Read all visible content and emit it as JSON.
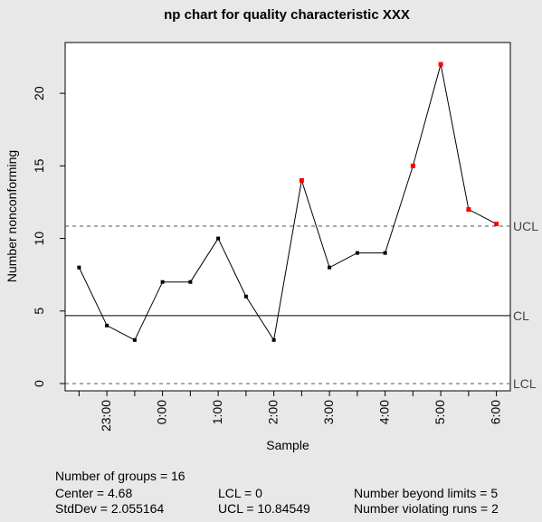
{
  "chart_data": {
    "type": "line",
    "title": "np chart for quality characteristic XXX",
    "xlabel": "Sample",
    "ylabel": "Number nonconforming",
    "x_tick_labels": [
      {
        "index": 2,
        "label": "23:00"
      },
      {
        "index": 4,
        "label": "0:00"
      },
      {
        "index": 6,
        "label": "1:00"
      },
      {
        "index": 8,
        "label": "2:00"
      },
      {
        "index": 10,
        "label": "3:00"
      },
      {
        "index": 12,
        "label": "4:00"
      },
      {
        "index": 14,
        "label": "5:00"
      },
      {
        "index": 16,
        "label": "6:00"
      }
    ],
    "y_ticks": [
      0,
      5,
      10,
      15,
      20
    ],
    "ylim": [
      -0.5,
      23.5
    ],
    "xlim": [
      0.5,
      16.5
    ],
    "values": [
      8,
      4,
      3,
      7,
      7,
      10,
      6,
      3,
      14,
      8,
      9,
      9,
      15,
      22,
      12,
      11
    ],
    "violations": [
      false,
      false,
      false,
      false,
      false,
      false,
      false,
      false,
      true,
      false,
      false,
      false,
      true,
      true,
      true,
      true
    ],
    "colors": {
      "normal": "#000000",
      "violation": "#ff0000",
      "limit_line": "#555555",
      "background": "#e8e8e8",
      "plot_bg": "#ffffff"
    },
    "limits": [
      {
        "key": "ucl",
        "label": "UCL",
        "value": 10.84549,
        "style": "dashed"
      },
      {
        "key": "cl",
        "label": "CL",
        "value": 4.68,
        "style": "solid"
      },
      {
        "key": "lcl",
        "label": "LCL",
        "value": 0,
        "style": "dashed"
      }
    ]
  },
  "stats": {
    "groups": "Number of groups = 16",
    "center": "Center = 4.68",
    "stddev": "StdDev = 2.055164",
    "lcl": "LCL = 0",
    "ucl": "UCL = 10.84549",
    "beyond": "Number beyond limits = 5",
    "runs": "Number violating runs = 2"
  }
}
